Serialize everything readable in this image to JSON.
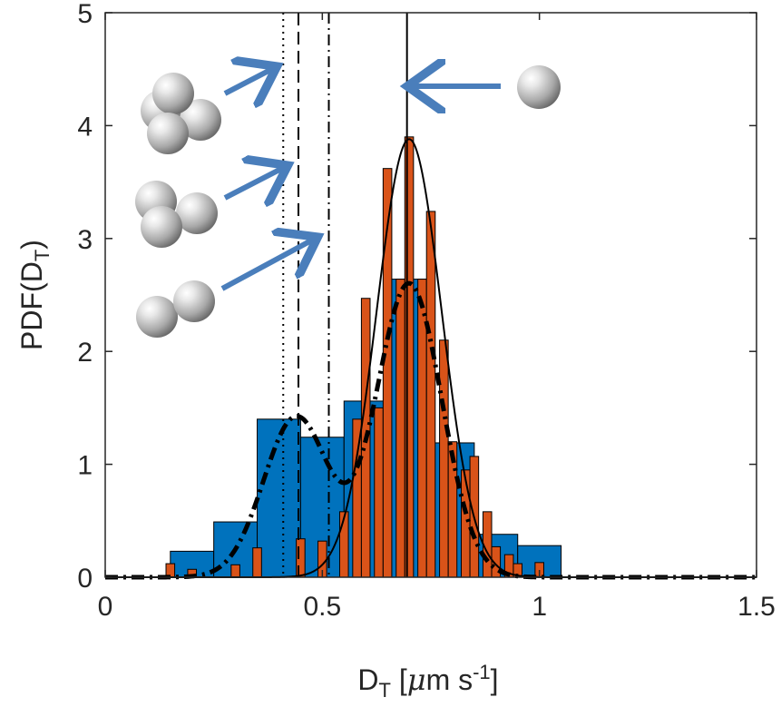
{
  "chart_data": {
    "type": "bar",
    "title": "",
    "xlabel": {
      "base": "D",
      "sub": "T",
      "rest": " [",
      "mu": "μ",
      "unit": "m s",
      "sup": "-1",
      "close": "]"
    },
    "ylabel": {
      "base": "PDF(D",
      "sub": "T",
      "close": ")"
    },
    "xlim": [
      0,
      1.5
    ],
    "ylim": [
      0,
      5
    ],
    "xticks": [
      0,
      0.5,
      1,
      1.5
    ],
    "xtick_labels": [
      "0",
      "0.5",
      "1",
      "1.5"
    ],
    "yticks": [
      0,
      1,
      2,
      3,
      4,
      5
    ],
    "ytick_labels": [
      "0",
      "1",
      "2",
      "3",
      "4",
      "5"
    ],
    "grid": false,
    "colors": {
      "blue_bars": "#0072BD",
      "orange_bars": "#D95319",
      "arrow": "#4A7EBB",
      "lines": "#000000"
    },
    "series": [
      {
        "kind": "histogram",
        "color": "#0072BD",
        "bin_width": 0.1,
        "bins": [
          {
            "x0": 0.15,
            "x1": 0.25,
            "value": 0.23
          },
          {
            "x0": 0.25,
            "x1": 0.35,
            "value": 0.49
          },
          {
            "x0": 0.35,
            "x1": 0.45,
            "value": 1.4
          },
          {
            "x0": 0.45,
            "x1": 0.55,
            "value": 1.24
          },
          {
            "x0": 0.55,
            "x1": 0.65,
            "value": 1.56
          },
          {
            "x0": 0.65,
            "x1": 0.75,
            "value": 2.64
          },
          {
            "x0": 0.75,
            "x1": 0.85,
            "value": 1.19
          },
          {
            "x0": 0.85,
            "x1": 0.95,
            "value": 0.38
          },
          {
            "x0": 0.95,
            "x1": 1.05,
            "value": 0.28
          }
        ]
      },
      {
        "kind": "histogram",
        "color": "#D95319",
        "bar_width": 0.02,
        "bins": [
          {
            "x": 0.15,
            "value": 0.12
          },
          {
            "x": 0.2,
            "value": 0.07
          },
          {
            "x": 0.3,
            "value": 0.11
          },
          {
            "x": 0.35,
            "value": 0.26
          },
          {
            "x": 0.45,
            "value": 0.34
          },
          {
            "x": 0.5,
            "value": 0.32
          },
          {
            "x": 0.55,
            "value": 0.58
          },
          {
            "x": 0.58,
            "value": 1.4
          },
          {
            "x": 0.6,
            "value": 2.47
          },
          {
            "x": 0.63,
            "value": 1.5
          },
          {
            "x": 0.65,
            "value": 3.62
          },
          {
            "x": 0.68,
            "value": 2.64
          },
          {
            "x": 0.7,
            "value": 3.9
          },
          {
            "x": 0.73,
            "value": 2.64
          },
          {
            "x": 0.75,
            "value": 3.24
          },
          {
            "x": 0.78,
            "value": 2.1
          },
          {
            "x": 0.8,
            "value": 1.2
          },
          {
            "x": 0.83,
            "value": 0.95
          },
          {
            "x": 0.85,
            "value": 1.07
          },
          {
            "x": 0.88,
            "value": 0.58
          },
          {
            "x": 0.9,
            "value": 0.27
          },
          {
            "x": 0.93,
            "value": 0.2
          },
          {
            "x": 0.95,
            "value": 0.12
          },
          {
            "x": 1.0,
            "value": 0.13
          }
        ]
      },
      {
        "kind": "gaussian-fit",
        "style": "solid",
        "mu": 0.7,
        "sigma": 0.075,
        "amplitude": 3.88
      },
      {
        "kind": "bimodal-fit",
        "style": "dash-dot-thick",
        "components": [
          {
            "mu": 0.44,
            "sigma": 0.075,
            "amplitude": 1.42
          },
          {
            "mu": 0.7,
            "sigma": 0.075,
            "amplitude": 2.6
          }
        ]
      }
    ],
    "reference_lines": [
      {
        "x": 0.41,
        "style": "dotted",
        "label": "four-sphere cluster"
      },
      {
        "x": 0.445,
        "style": "dashed",
        "label": "three-sphere cluster"
      },
      {
        "x": 0.515,
        "style": "dash-dot",
        "label": "two-sphere cluster"
      },
      {
        "x": 0.695,
        "style": "solid",
        "label": "single sphere"
      }
    ],
    "annotations": [
      {
        "kind": "sphere-cluster-icon",
        "count": 4,
        "points_to": 0.41
      },
      {
        "kind": "sphere-cluster-icon",
        "count": 3,
        "points_to": 0.445
      },
      {
        "kind": "sphere-cluster-icon",
        "count": 2,
        "points_to": 0.515
      },
      {
        "kind": "sphere-cluster-icon",
        "count": 1,
        "points_to": 0.695
      }
    ]
  }
}
